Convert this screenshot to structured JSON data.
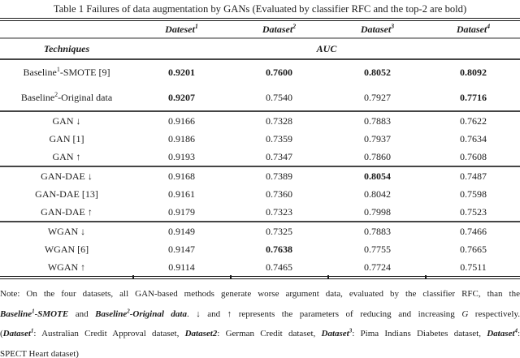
{
  "colors": {
    "text": "#1c1c1c",
    "rule_dark": "#454545",
    "rule_light": "#979797"
  },
  "title": "Table 1 Failures of data augmentation by GANs (Evaluated by classifier RFC and the top-2 are bold)",
  "table": {
    "dataset_headers": [
      [
        {
          "t": "Dateset"
        },
        {
          "t": "1",
          "sup": true
        }
      ],
      [
        {
          "t": "Dataset"
        },
        {
          "t": "2",
          "sup": true
        }
      ],
      [
        {
          "t": "Dataset"
        },
        {
          "t": "3",
          "sup": true
        }
      ],
      [
        {
          "t": "Dataset"
        },
        {
          "t": "4",
          "sup": true
        }
      ]
    ],
    "techniques_label": "Techniques",
    "auc_label": "AUC",
    "rows": [
      {
        "section": "baseline",
        "label": [
          {
            "t": "Baseline"
          },
          {
            "t": "1",
            "sup": true
          },
          {
            "t": "-SMOTE [9]"
          }
        ],
        "values": [
          {
            "v": "0.9201",
            "b": true
          },
          {
            "v": "0.7600",
            "b": true
          },
          {
            "v": "0.8052",
            "b": true
          },
          {
            "v": "0.8092",
            "b": true
          }
        ]
      },
      {
        "section": "baseline",
        "label": [
          {
            "t": "Baseline"
          },
          {
            "t": "2",
            "sup": true
          },
          {
            "t": "-Original data"
          }
        ],
        "values": [
          {
            "v": "0.9207",
            "b": true
          },
          {
            "v": "0.7540"
          },
          {
            "v": "0.7927"
          },
          {
            "v": "0.7716",
            "b": true
          }
        ]
      },
      {
        "section": "gan",
        "label": [
          {
            "t": "GAN ↓"
          }
        ],
        "values": [
          {
            "v": "0.9166"
          },
          {
            "v": "0.7328"
          },
          {
            "v": "0.7883"
          },
          {
            "v": "0.7622"
          }
        ]
      },
      {
        "section": "gan",
        "label": [
          {
            "t": "GAN [1]"
          }
        ],
        "values": [
          {
            "v": "0.9186"
          },
          {
            "v": "0.7359"
          },
          {
            "v": "0.7937"
          },
          {
            "v": "0.7634"
          }
        ]
      },
      {
        "section": "gan",
        "label": [
          {
            "t": "GAN ↑"
          }
        ],
        "values": [
          {
            "v": "0.9193"
          },
          {
            "v": "0.7347"
          },
          {
            "v": "0.7860"
          },
          {
            "v": "0.7608"
          }
        ]
      },
      {
        "section": "gan-dae",
        "label": [
          {
            "t": "GAN-DAE ↓"
          }
        ],
        "values": [
          {
            "v": "0.9168"
          },
          {
            "v": "0.7389"
          },
          {
            "v": "0.8054",
            "b": true
          },
          {
            "v": "0.7487"
          }
        ]
      },
      {
        "section": "gan-dae",
        "label": [
          {
            "t": "GAN-DAE [13]"
          }
        ],
        "values": [
          {
            "v": "0.9161"
          },
          {
            "v": "0.7360"
          },
          {
            "v": "0.8042"
          },
          {
            "v": "0.7598"
          }
        ]
      },
      {
        "section": "gan-dae",
        "label": [
          {
            "t": "GAN-DAE ↑"
          }
        ],
        "values": [
          {
            "v": "0.9179"
          },
          {
            "v": "0.7323"
          },
          {
            "v": "0.7998"
          },
          {
            "v": "0.7523"
          }
        ]
      },
      {
        "section": "wgan",
        "label": [
          {
            "t": "WGAN ↓"
          }
        ],
        "values": [
          {
            "v": "0.9149"
          },
          {
            "v": "0.7325"
          },
          {
            "v": "0.7883"
          },
          {
            "v": "0.7466"
          }
        ]
      },
      {
        "section": "wgan",
        "label": [
          {
            "t": "WGAN [6]"
          }
        ],
        "values": [
          {
            "v": "0.9147"
          },
          {
            "v": "0.7638",
            "b": true
          },
          {
            "v": "0.7755"
          },
          {
            "v": "0.7665"
          }
        ]
      },
      {
        "section": "wgan",
        "label": [
          {
            "t": "WGAN ↑"
          }
        ],
        "values": [
          {
            "v": "0.9114"
          },
          {
            "v": "0.7465"
          },
          {
            "v": "0.7724"
          },
          {
            "v": "0.7511"
          }
        ]
      }
    ]
  },
  "notes": {
    "line1": [
      {
        "t": "Note: On the four datasets, all GAN-based methods generate worse argument data, evaluated by the classifier RFC, than the"
      }
    ],
    "line2": [
      {
        "t": "Baseline",
        "b": true,
        "i": true
      },
      {
        "t": "1",
        "sup": true,
        "b": true,
        "i": true
      },
      {
        "t": "-SMOTE",
        "b": true,
        "i": true
      },
      {
        "t": " and "
      },
      {
        "t": "Baseline",
        "b": true,
        "i": true
      },
      {
        "t": "2",
        "sup": true,
        "b": true,
        "i": true
      },
      {
        "t": "-Original data",
        "b": true,
        "i": true
      },
      {
        "t": ".   ↓ and ↑ represents the parameters of reducing and increasing "
      },
      {
        "t": "G",
        "i": true
      },
      {
        "t": " respectively."
      }
    ],
    "line3": [
      {
        "t": "("
      },
      {
        "t": "Dataset",
        "b": true,
        "i": true
      },
      {
        "t": "1",
        "sup": true,
        "b": true,
        "i": true
      },
      {
        "t": ": Australian Credit Approval dataset, "
      },
      {
        "t": "Dataset2",
        "b": true,
        "i": true
      },
      {
        "t": ": German Credit dataset, "
      },
      {
        "t": "Dataset",
        "b": true,
        "i": true
      },
      {
        "t": "3",
        "sup": true,
        "b": true,
        "i": true
      },
      {
        "t": ": Pima Indians Diabetes dataset, "
      },
      {
        "t": "Dataset",
        "b": true,
        "i": true
      },
      {
        "t": "4",
        "sup": true,
        "b": true,
        "i": true
      },
      {
        "t": ":"
      }
    ],
    "line4": [
      {
        "t": "SPECT Heart dataset)"
      }
    ]
  }
}
